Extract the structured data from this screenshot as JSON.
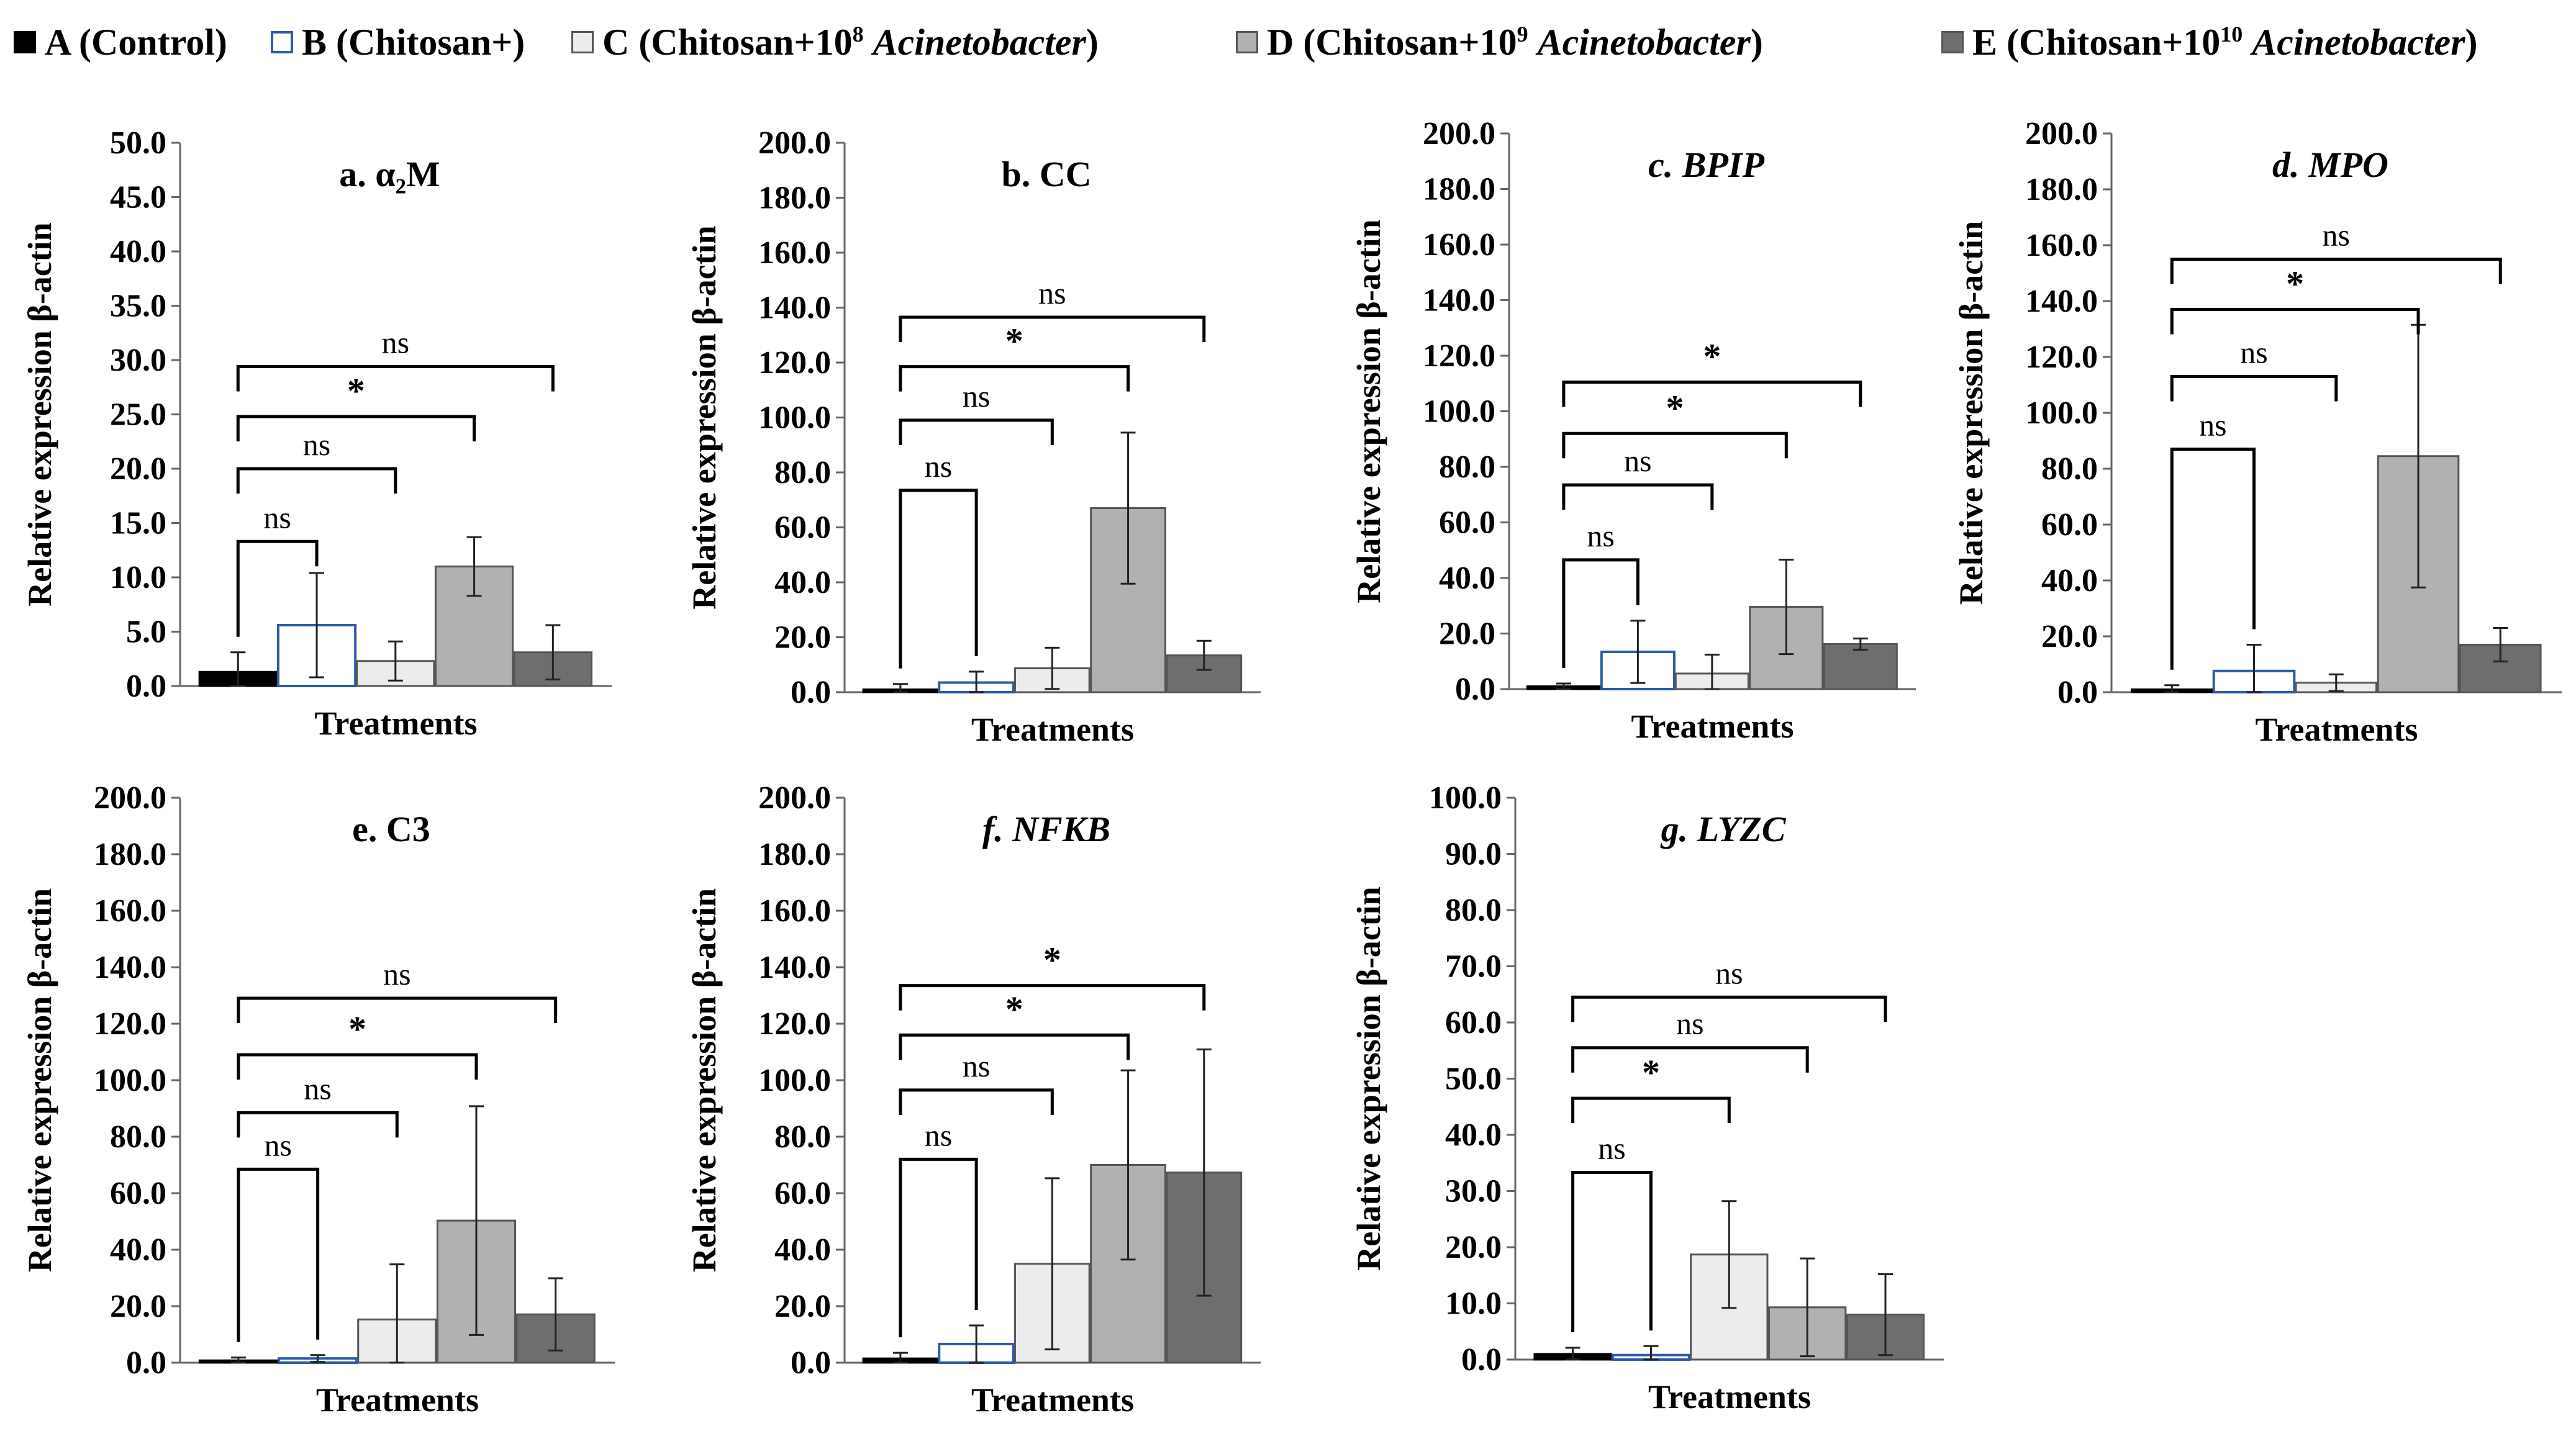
{
  "legend": [
    {
      "key": "A",
      "text": "A (Control)",
      "color": "#000000",
      "border": "#000000"
    },
    {
      "key": "B",
      "text": "B (Chitosan+)",
      "color": "#ffffff",
      "border": "#2e5aa8"
    },
    {
      "key": "C",
      "text": "C (Chitosan+10^8 Acinetobacter)",
      "color": "#ececec",
      "border": "#555555"
    },
    {
      "key": "D",
      "text": "D (Chitosan+10^9 Acinetobacter)",
      "color": "#b1b1b1",
      "border": "#555555"
    },
    {
      "key": "E",
      "text": "E (Chitosan+10^10 Acinetobacter)",
      "color": "#6e6e6e",
      "border": "#555555"
    }
  ],
  "chart_data": [
    {
      "type": "bar",
      "title": "a. α₂M",
      "title_italic": false,
      "xlabel": "Treatments",
      "ylabel": "Relative expression β-actin",
      "categories": [
        "A",
        "B",
        "C",
        "D",
        "E"
      ],
      "values": [
        1.3,
        5.6,
        2.3,
        11.0,
        3.1
      ],
      "errors": [
        1.8,
        4.8,
        1.8,
        2.7,
        2.5
      ],
      "ylim": [
        0,
        50
      ],
      "ytick_step": 5,
      "ytick_labels": [
        "0.0",
        "5.0",
        "10.0",
        "15.0",
        "20.0",
        "25.0",
        "30.0",
        "35.0",
        "40.0",
        "45.0",
        "50.0"
      ],
      "comparisons": [
        {
          "from": "A",
          "to": "B",
          "label": "ns",
          "level": 13.3
        },
        {
          "from": "A",
          "to": "C",
          "label": "ns",
          "level": 20.0
        },
        {
          "from": "A",
          "to": "D",
          "label": "*",
          "level": 24.8
        },
        {
          "from": "A",
          "to": "E",
          "label": "ns",
          "level": 29.4
        }
      ]
    },
    {
      "type": "bar",
      "title": "b. CC",
      "title_italic": false,
      "xlabel": "Treatments",
      "ylabel": "Relative expression β-actin",
      "categories": [
        "A",
        "B",
        "C",
        "D",
        "E"
      ],
      "values": [
        1.0,
        3.5,
        8.7,
        67.0,
        13.4
      ],
      "errors": [
        2.0,
        4.0,
        7.5,
        27.5,
        5.3
      ],
      "ylim": [
        0,
        200
      ],
      "ytick_step": 20,
      "ytick_labels": [
        "0.0",
        "20.0",
        "40.0",
        "60.0",
        "80.0",
        "100.0",
        "120.0",
        "140.0",
        "160.0",
        "180.0",
        "200.0"
      ],
      "comparisons": [
        {
          "from": "A",
          "to": "B",
          "label": "ns",
          "level": 73.5
        },
        {
          "from": "A",
          "to": "C",
          "label": "ns",
          "level": 99.0
        },
        {
          "from": "A",
          "to": "D",
          "label": "*",
          "level": 118.5
        },
        {
          "from": "A",
          "to": "E",
          "label": "ns",
          "level": 136.5
        }
      ]
    },
    {
      "type": "bar",
      "title": "c. BPIP",
      "title_italic": true,
      "xlabel": "Treatments",
      "ylabel": "Relative expression β-actin",
      "categories": [
        "A",
        "B",
        "C",
        "D",
        "E"
      ],
      "values": [
        1.0,
        13.4,
        5.6,
        29.6,
        16.2
      ],
      "errors": [
        1.0,
        11.2,
        6.8,
        17.0,
        2.0
      ],
      "ylim": [
        0,
        200
      ],
      "ytick_step": 20,
      "ytick_labels": [
        "0.0",
        "20.0",
        "40.0",
        "60.0",
        "80.0",
        "100.0",
        "120.0",
        "140.0",
        "160.0",
        "180.0",
        "200.0"
      ],
      "comparisons": [
        {
          "from": "A",
          "to": "B",
          "label": "ns",
          "level": 46.5
        },
        {
          "from": "A",
          "to": "C",
          "label": "ns",
          "level": 73.5
        },
        {
          "from": "A",
          "to": "D",
          "label": "*",
          "level": 92.0
        },
        {
          "from": "A",
          "to": "E",
          "label": "*",
          "level": 110.5
        }
      ]
    },
    {
      "type": "bar",
      "title": "d. MPO",
      "title_italic": true,
      "xlabel": "Treatments",
      "ylabel": "Relative expression β-actin",
      "categories": [
        "A",
        "B",
        "C",
        "D",
        "E"
      ],
      "values": [
        1.0,
        7.6,
        3.4,
        84.5,
        17.0
      ],
      "errors": [
        1.5,
        9.4,
        3.0,
        47.0,
        6.0
      ],
      "ylim": [
        0,
        200
      ],
      "ytick_step": 20,
      "ytick_labels": [
        "0.0",
        "20.0",
        "40.0",
        "60.0",
        "80.0",
        "100.0",
        "120.0",
        "140.0",
        "160.0",
        "180.0",
        "200.0"
      ],
      "comparisons": [
        {
          "from": "A",
          "to": "B",
          "label": "ns",
          "level": 87.0
        },
        {
          "from": "A",
          "to": "C",
          "label": "ns",
          "level": 113.0
        },
        {
          "from": "A",
          "to": "D",
          "label": "*",
          "level": 137.0
        },
        {
          "from": "A",
          "to": "E",
          "label": "ns",
          "level": 155.0
        }
      ]
    },
    {
      "type": "bar",
      "title": "e. C3",
      "title_italic": false,
      "xlabel": "Treatments",
      "ylabel": "Relative expression β-actin",
      "categories": [
        "A",
        "B",
        "C",
        "D",
        "E"
      ],
      "values": [
        0.8,
        1.5,
        15.3,
        50.3,
        17.1
      ],
      "errors": [
        1.0,
        1.2,
        19.5,
        40.5,
        12.8
      ],
      "ylim": [
        0,
        200
      ],
      "ytick_step": 20,
      "ytick_labels": [
        "0.0",
        "20.0",
        "40.0",
        "60.0",
        "80.0",
        "100.0",
        "120.0",
        "140.0",
        "160.0",
        "180.0",
        "200.0"
      ],
      "comparisons": [
        {
          "from": "A",
          "to": "B",
          "label": "ns",
          "level": 68.5
        },
        {
          "from": "A",
          "to": "C",
          "label": "ns",
          "level": 88.5
        },
        {
          "from": "A",
          "to": "D",
          "label": "*",
          "level": 109.0
        },
        {
          "from": "A",
          "to": "E",
          "label": "ns",
          "level": 129.0
        }
      ]
    },
    {
      "type": "bar",
      "title": "f. NFKB",
      "title_italic": true,
      "xlabel": "Treatments",
      "ylabel": "Relative expression β-actin",
      "categories": [
        "A",
        "B",
        "C",
        "D",
        "E"
      ],
      "values": [
        1.5,
        6.6,
        35.0,
        70.0,
        67.3
      ],
      "errors": [
        2.0,
        6.6,
        30.3,
        33.5,
        43.6
      ],
      "ylim": [
        0,
        200
      ],
      "ytick_step": 20,
      "ytick_labels": [
        "0.0",
        "20.0",
        "40.0",
        "60.0",
        "80.0",
        "100.0",
        "120.0",
        "140.0",
        "160.0",
        "180.0",
        "200.0"
      ],
      "comparisons": [
        {
          "from": "A",
          "to": "B",
          "label": "ns",
          "level": 72.0
        },
        {
          "from": "A",
          "to": "C",
          "label": "ns",
          "level": 96.5
        },
        {
          "from": "A",
          "to": "D",
          "label": "*",
          "level": 116.0
        },
        {
          "from": "A",
          "to": "E",
          "label": "*",
          "level": 133.5
        }
      ]
    },
    {
      "type": "bar",
      "title": "g. LYZC",
      "title_italic": true,
      "xlabel": "Treatments",
      "ylabel": "Relative expression β-actin",
      "categories": [
        "A",
        "B",
        "C",
        "D",
        "E"
      ],
      "values": [
        1.0,
        0.8,
        18.7,
        9.3,
        8.0
      ],
      "errors": [
        1.1,
        1.6,
        9.5,
        8.7,
        7.2
      ],
      "ylim": [
        0,
        100
      ],
      "ytick_step": 10,
      "ytick_labels": [
        "0.0",
        "10.0",
        "20.0",
        "30.0",
        "40.0",
        "50.0",
        "60.0",
        "70.0",
        "80.0",
        "90.0",
        "100.0"
      ],
      "comparisons": [
        {
          "from": "A",
          "to": "B",
          "label": "ns",
          "level": 33.3
        },
        {
          "from": "A",
          "to": "C",
          "label": "*",
          "level": 46.5
        },
        {
          "from": "A",
          "to": "D",
          "label": "ns",
          "level": 55.5
        },
        {
          "from": "A",
          "to": "E",
          "label": "ns",
          "level": 64.5
        }
      ]
    }
  ]
}
